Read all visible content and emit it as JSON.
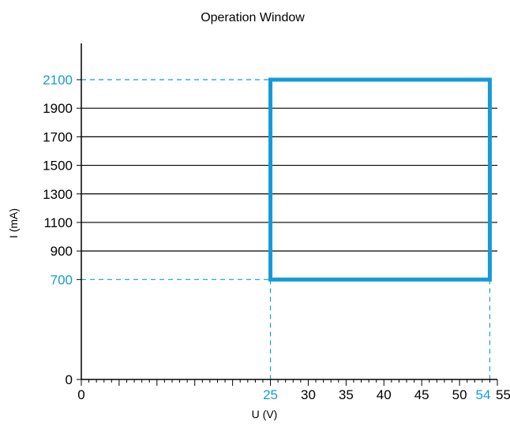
{
  "chart_data": {
    "type": "area",
    "title": "Operation Window",
    "xlabel": "U (V)",
    "ylabel": "I (mA)",
    "xlim": [
      0,
      55
    ],
    "ylim": [
      0,
      2300
    ],
    "x_ticks": [
      0,
      25,
      30,
      35,
      40,
      45,
      50,
      54,
      55
    ],
    "x_tick_labels": [
      "0",
      "25",
      "30",
      "35",
      "40",
      "45",
      "50",
      "54",
      "55"
    ],
    "x_highlight_ticks": [
      25,
      54
    ],
    "y_ticks": [
      0,
      700,
      900,
      1100,
      1300,
      1500,
      1700,
      1900,
      2100
    ],
    "y_tick_labels": [
      "0",
      "700",
      "900",
      "1100",
      "1300",
      "1500",
      "1700",
      "1900",
      "2100"
    ],
    "y_highlight_ticks": [
      700,
      2100
    ],
    "y_gridlines": [
      900,
      1100,
      1300,
      1500,
      1700,
      1900
    ],
    "window": {
      "u_min": 25,
      "u_max": 54,
      "i_min": 700,
      "i_max": 2100
    },
    "grid": true,
    "legend": "none",
    "colors": {
      "window": "#159ad7",
      "highlight_text": "#159ad7",
      "axis": "#000000",
      "text": "#000000"
    }
  }
}
